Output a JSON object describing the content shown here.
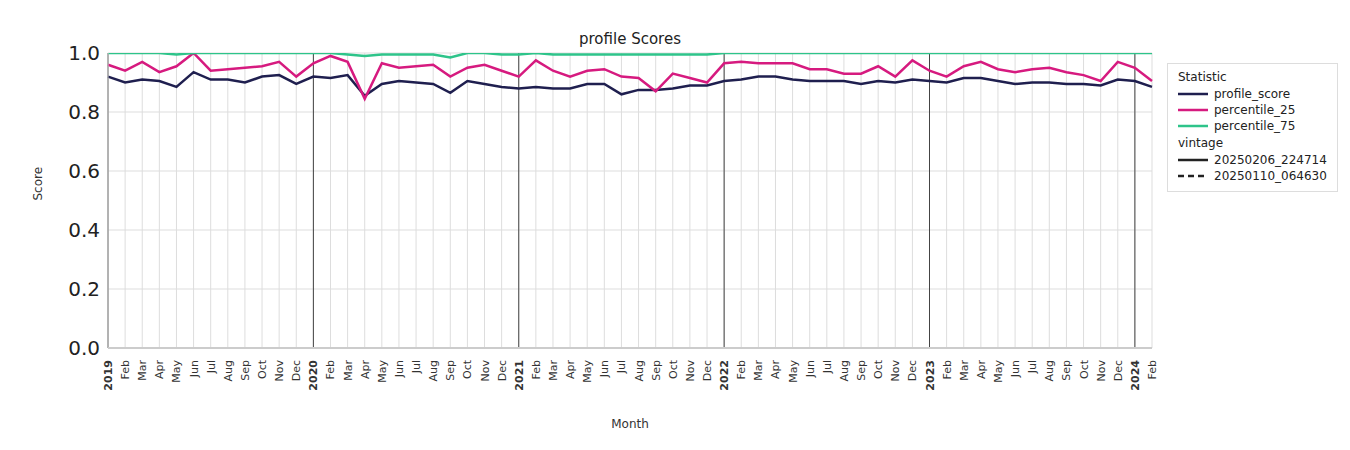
{
  "chart_data": {
    "type": "line",
    "title": "profile Scores",
    "x_label": "Month",
    "y_label": "Score",
    "categories": [
      "2019",
      "Feb",
      "Mar",
      "Apr",
      "May",
      "Jun",
      "Jul",
      "Aug",
      "Sep",
      "Oct",
      "Nov",
      "Dec",
      "2020",
      "Feb",
      "Mar",
      "Apr",
      "May",
      "Jun",
      "Jul",
      "Aug",
      "Sep",
      "Oct",
      "Nov",
      "Dec",
      "2021",
      "Feb",
      "Mar",
      "Apr",
      "May",
      "Jun",
      "Jul",
      "Aug",
      "Sep",
      "Oct",
      "Nov",
      "Dec",
      "2022",
      "Feb",
      "Mar",
      "Apr",
      "May",
      "Jun",
      "Jul",
      "Aug",
      "Sep",
      "Oct",
      "Nov",
      "Dec",
      "2023",
      "Feb",
      "Mar",
      "Apr",
      "May",
      "Jun",
      "Jul",
      "Aug",
      "Sep",
      "Oct",
      "Nov",
      "Dec",
      "2024",
      "Feb"
    ],
    "series": [
      {
        "name": "profile_score",
        "color": "#1f1f4f",
        "values": [
          0.92,
          0.9,
          0.91,
          0.905,
          0.885,
          0.935,
          0.91,
          0.91,
          0.9,
          0.92,
          0.925,
          0.895,
          0.92,
          0.915,
          0.925,
          0.855,
          0.895,
          0.905,
          0.9,
          0.895,
          0.865,
          0.905,
          0.895,
          0.885,
          0.88,
          0.885,
          0.88,
          0.88,
          0.895,
          0.895,
          0.86,
          0.875,
          0.875,
          0.88,
          0.89,
          0.89,
          0.905,
          0.91,
          0.92,
          0.92,
          0.91,
          0.905,
          0.905,
          0.905,
          0.895,
          0.905,
          0.9,
          0.91,
          0.905,
          0.9,
          0.915,
          0.915,
          0.905,
          0.895,
          0.9,
          0.9,
          0.895,
          0.895,
          0.89,
          0.91,
          0.905,
          0.885
        ]
      },
      {
        "name": "percentile_25",
        "color": "#d61a7f",
        "values": [
          0.96,
          0.94,
          0.97,
          0.935,
          0.955,
          1.0,
          0.94,
          0.945,
          0.95,
          0.955,
          0.97,
          0.92,
          0.965,
          0.99,
          0.97,
          0.845,
          0.965,
          0.95,
          0.955,
          0.96,
          0.92,
          0.95,
          0.96,
          0.94,
          0.92,
          0.975,
          0.94,
          0.92,
          0.94,
          0.945,
          0.92,
          0.915,
          0.87,
          0.93,
          0.915,
          0.9,
          0.965,
          0.97,
          0.965,
          0.965,
          0.965,
          0.945,
          0.945,
          0.93,
          0.93,
          0.955,
          0.92,
          0.975,
          0.94,
          0.92,
          0.955,
          0.97,
          0.945,
          0.935,
          0.945,
          0.95,
          0.935,
          0.925,
          0.905,
          0.97,
          0.95,
          0.905
        ]
      },
      {
        "name": "percentile_75",
        "color": "#2ec48a",
        "values": [
          1.0,
          1.0,
          1.0,
          1.0,
          0.995,
          1.0,
          1.0,
          1.0,
          1.0,
          1.0,
          1.0,
          1.0,
          1.0,
          1.0,
          0.995,
          0.99,
          0.995,
          0.995,
          0.995,
          0.995,
          0.985,
          1.0,
          1.0,
          0.995,
          0.995,
          1.0,
          0.995,
          0.995,
          0.995,
          0.995,
          0.995,
          0.995,
          0.995,
          0.995,
          0.995,
          0.995,
          1.0,
          1.0,
          1.0,
          1.0,
          1.0,
          1.0,
          1.0,
          1.0,
          1.0,
          1.0,
          1.0,
          1.0,
          1.0,
          1.0,
          1.0,
          1.0,
          1.0,
          1.0,
          1.0,
          1.0,
          1.0,
          1.0,
          1.0,
          1.0,
          1.0,
          1.0
        ]
      }
    ],
    "ylim": [
      0,
      1.0
    ],
    "yticks": [
      {
        "value": 0,
        "label": "0.0"
      },
      {
        "value": 0.2,
        "label": "0.2"
      },
      {
        "value": 0.4,
        "label": "0.4"
      },
      {
        "value": 0.6,
        "label": "0.6"
      },
      {
        "value": 0.8,
        "label": "0.8"
      },
      {
        "value": 1.0,
        "label": "1.0"
      }
    ],
    "grid": true,
    "legend": "right",
    "legend_title": "Statistic",
    "vintage_title": "vintage",
    "vintages": [
      {
        "name": "20250206_224714",
        "line_style": "solid"
      },
      {
        "name": "20250110_064630",
        "line_style": "dashed"
      }
    ]
  }
}
